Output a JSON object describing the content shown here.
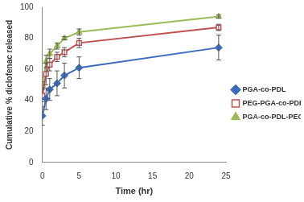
{
  "chart_data": {
    "type": "line",
    "x_label": "Time (hr)",
    "y_label": "Cumulative % diclofenac released",
    "x": [
      0,
      0.5,
      1,
      2,
      3,
      5,
      24
    ],
    "series": [
      {
        "name": "PGA-co-PDL",
        "color": "#3a6bbf",
        "marker": "diamond",
        "values": [
          30,
          41,
          47,
          51,
          56,
          61,
          74
        ],
        "errors": [
          6,
          7,
          7,
          8,
          8,
          7,
          8
        ]
      },
      {
        "name": "PEG-PGA-co-PDL-PEG",
        "color": "#c0504d",
        "marker": "square",
        "values": [
          43,
          57,
          63,
          68,
          71,
          77,
          87
        ],
        "errors": [
          4,
          7,
          4,
          3,
          3,
          3,
          2
        ]
      },
      {
        "name": "PGA-co-PDL-PEGme",
        "color": "#9bbb59",
        "marker": "triangle",
        "values": [
          50,
          65,
          70,
          75,
          80,
          84,
          94
        ],
        "errors": [
          2,
          4,
          3,
          2,
          1,
          2,
          1
        ]
      }
    ],
    "xlim": [
      0,
      25
    ],
    "xticks": [
      0,
      5,
      10,
      15,
      20,
      25
    ],
    "ylim": [
      0,
      100
    ],
    "yticks": [
      0,
      20,
      40,
      60,
      80,
      100
    ],
    "grid": false,
    "legend": "right"
  }
}
